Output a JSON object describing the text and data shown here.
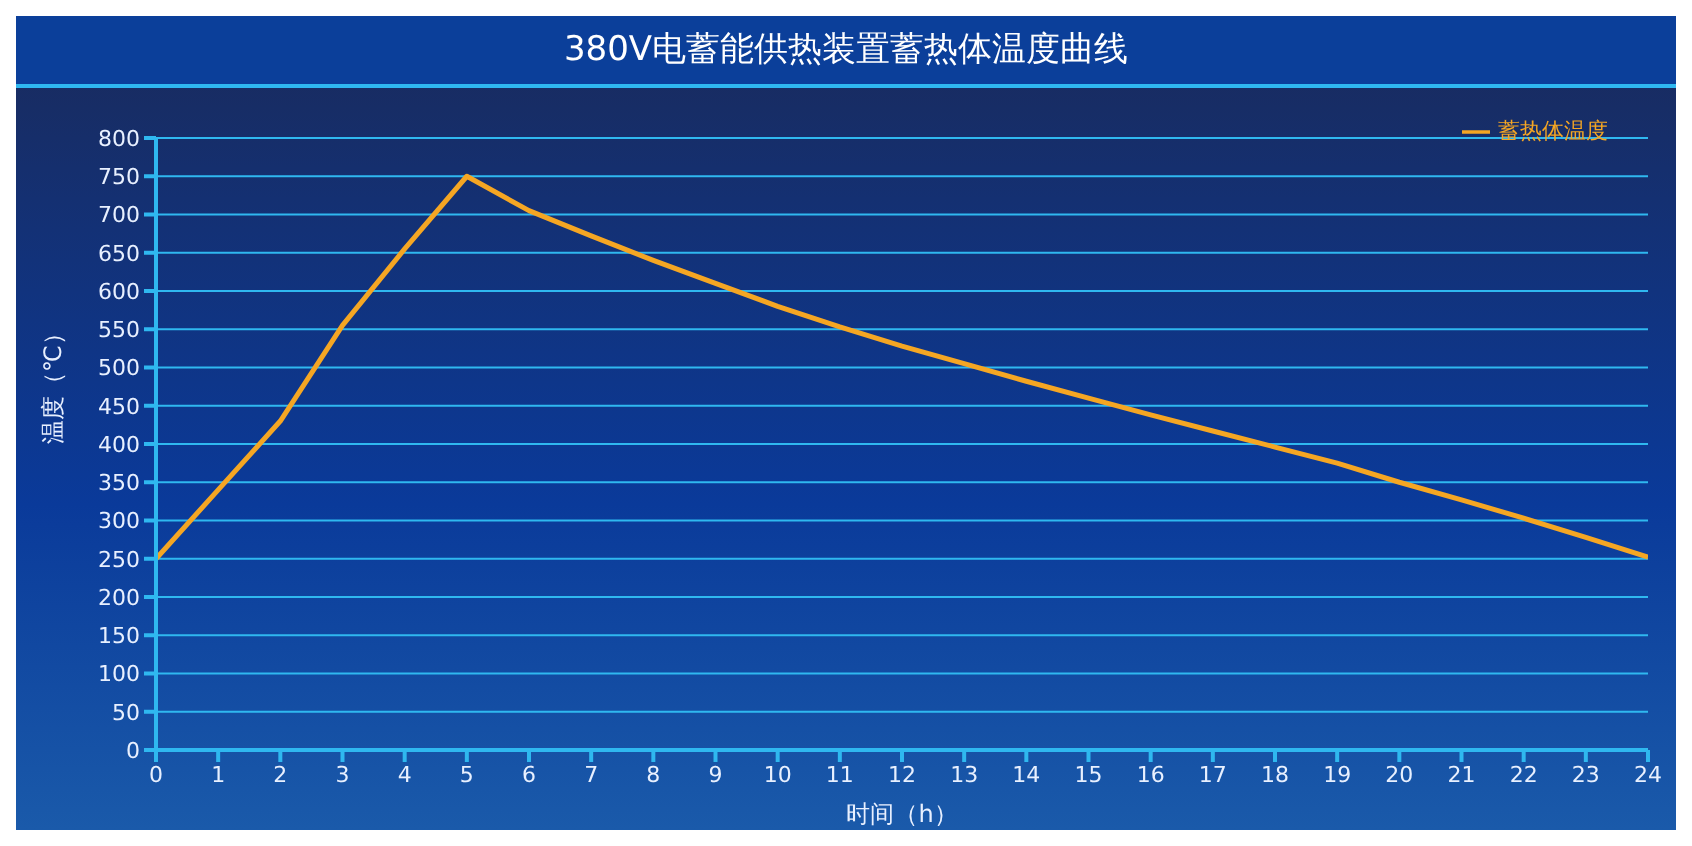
{
  "chart_data": {
    "type": "line",
    "title": "380V电蓄能供热装置蓄热体温度曲线",
    "xlabel": "时间（h）",
    "ylabel": "温度（℃）",
    "x": [
      0,
      1,
      2,
      3,
      4,
      5,
      6,
      7,
      8,
      9,
      10,
      11,
      12,
      13,
      14,
      15,
      16,
      17,
      18,
      19,
      20,
      21,
      22,
      23,
      24
    ],
    "series": [
      {
        "name": "蓄热体温度",
        "color": "#f5a623",
        "values": [
          250,
          340,
          430,
          555,
          655,
          750,
          705,
          672,
          640,
          610,
          580,
          553,
          528,
          505,
          482,
          460,
          438,
          417,
          396,
          375,
          350,
          327,
          303,
          278,
          252
        ]
      }
    ],
    "xlim": [
      0,
      24
    ],
    "xticks": [
      0,
      1,
      2,
      3,
      4,
      5,
      6,
      7,
      8,
      9,
      10,
      11,
      12,
      13,
      14,
      15,
      16,
      17,
      18,
      19,
      20,
      21,
      22,
      23,
      24
    ],
    "ylim": [
      0,
      800
    ],
    "yticks": [
      0,
      50,
      100,
      150,
      200,
      250,
      300,
      350,
      400,
      450,
      500,
      550,
      600,
      650,
      700,
      750,
      800
    ],
    "grid": "y",
    "legend": "top right",
    "marker": "none",
    "line_style": "solid"
  }
}
